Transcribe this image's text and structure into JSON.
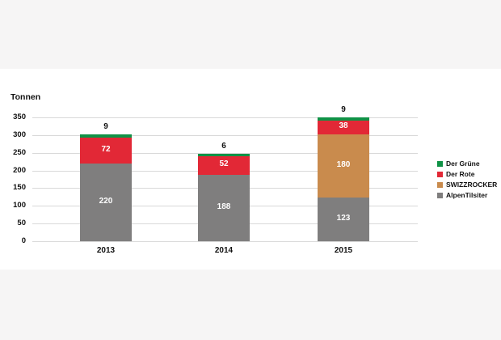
{
  "ui": {
    "background_color": "#f6f5f5",
    "panel_color": "#ffffff",
    "gridline_color": "#d9d9d9",
    "text_color": "#111111"
  },
  "chart_data": {
    "type": "bar",
    "stacked": true,
    "title": "",
    "ylabel": "Tonnen",
    "xlabel": "",
    "categories": [
      "2013",
      "2014",
      "2015"
    ],
    "series": [
      {
        "name": "AlpenTilsiter",
        "color": "#7f7e7e",
        "values": [
          220,
          188,
          123
        ]
      },
      {
        "name": "SWIZZROCKER",
        "color": "#c98b4d",
        "values": [
          0,
          0,
          180
        ]
      },
      {
        "name": "Der Rote",
        "color": "#e22836",
        "values": [
          72,
          52,
          38
        ]
      },
      {
        "name": "Der Grüne",
        "color": "#0f9246",
        "values": [
          9,
          6,
          9
        ]
      }
    ],
    "totals": [
      301,
      246,
      350
    ],
    "yticks": [
      0,
      50,
      100,
      150,
      200,
      250,
      300,
      350
    ],
    "ylim": [
      0,
      350
    ],
    "grid": true,
    "legend_position": "right",
    "legend_order": [
      "Der Grüne",
      "Der Rote",
      "SWIZZROCKER",
      "AlpenTilsiter"
    ]
  }
}
